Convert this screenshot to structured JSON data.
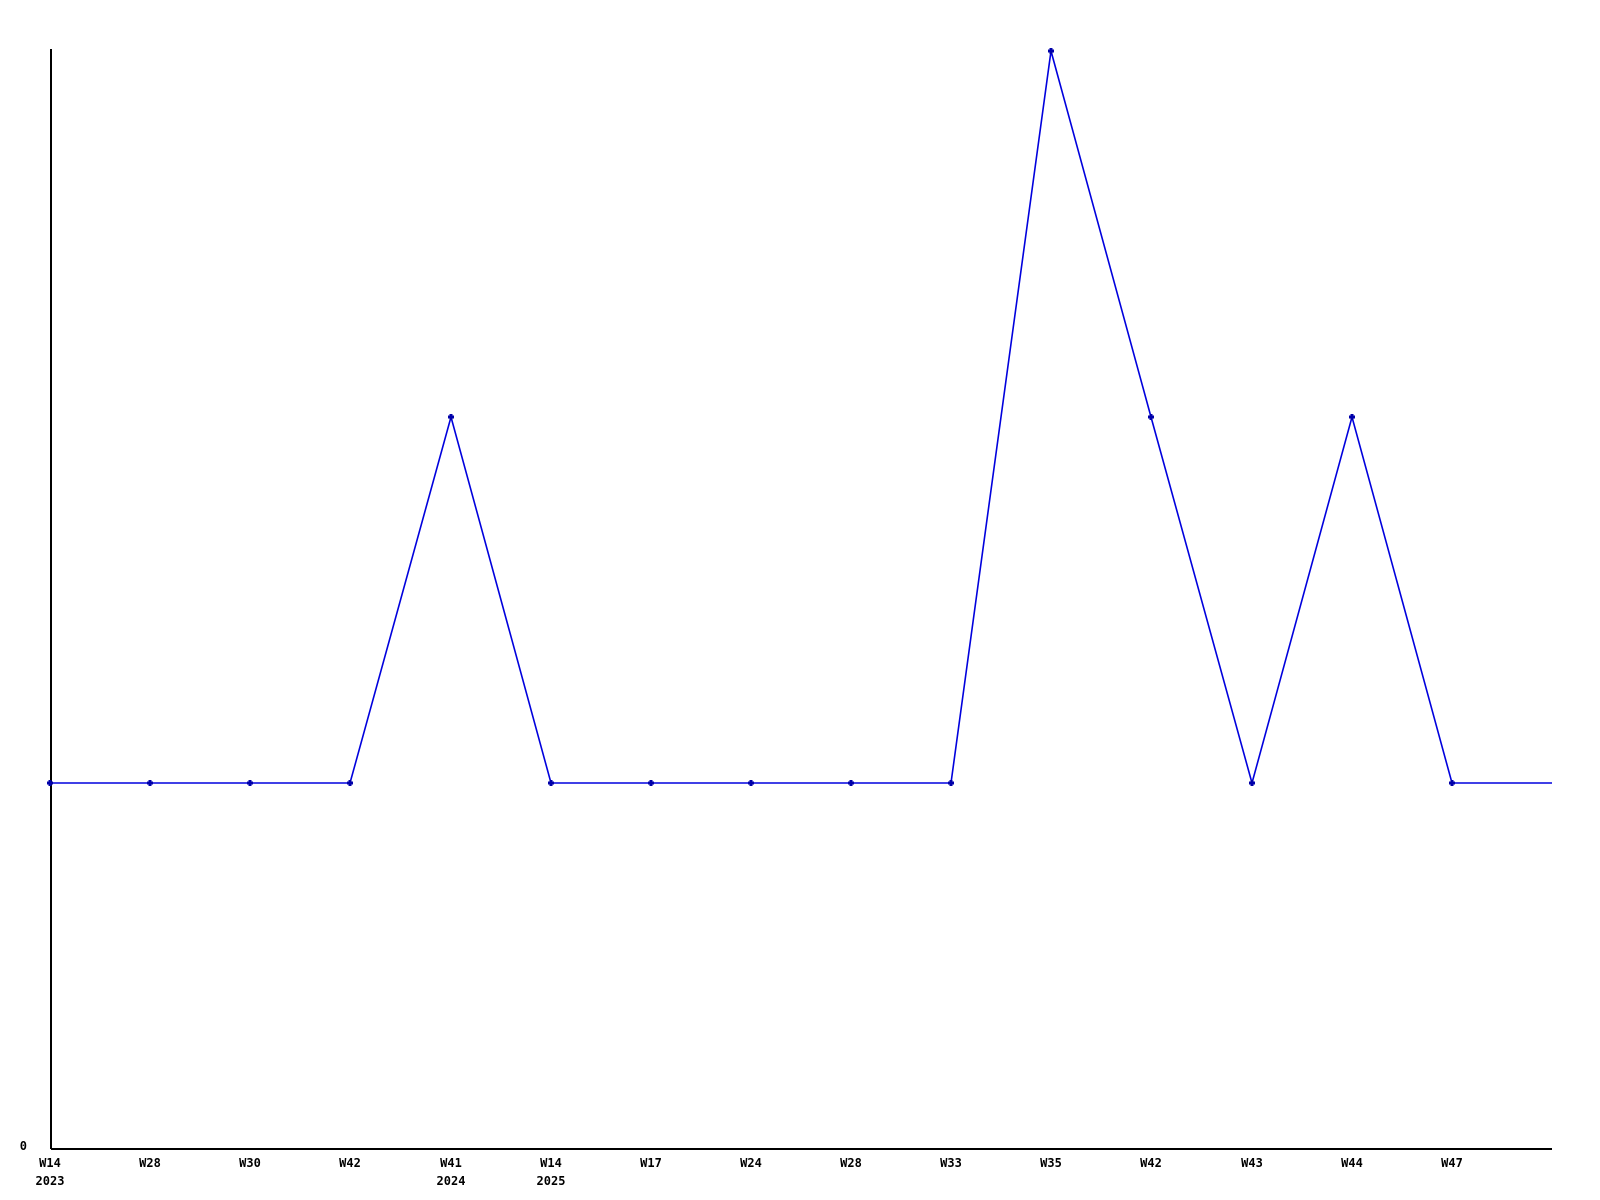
{
  "chart_data": {
    "type": "line",
    "title": "",
    "xlabel": "",
    "ylabel": "",
    "categories": [
      "W14 2023",
      "W28",
      "W30",
      "W42",
      "W41 2024",
      "W14 2025",
      "W17",
      "W24",
      "W28",
      "W33",
      "W35",
      "W42",
      "W43",
      "W44",
      "W47",
      ""
    ],
    "values": [
      1,
      1,
      1,
      1,
      2,
      1,
      1,
      1,
      1,
      1,
      3,
      2,
      1,
      2,
      1,
      1
    ],
    "tick_labels": [
      [
        "W14",
        "2023"
      ],
      [
        "W28"
      ],
      [
        "W30"
      ],
      [
        "W42"
      ],
      [
        "W41",
        "2024"
      ],
      [
        "W14",
        "2025"
      ],
      [
        "W17"
      ],
      [
        "W24"
      ],
      [
        "W28"
      ],
      [
        "W33"
      ],
      [
        "W35"
      ],
      [
        "W42"
      ],
      [
        "W43"
      ],
      [
        "W44"
      ],
      [
        "W47"
      ],
      []
    ],
    "markers_shown": [
      true,
      true,
      true,
      true,
      true,
      true,
      true,
      true,
      true,
      true,
      true,
      true,
      true,
      true,
      true,
      false
    ],
    "y_tick_labels": [
      "0"
    ],
    "ylim": [
      0,
      3
    ],
    "grid": false,
    "legend": null,
    "line_color": "#0000dd",
    "marker_color": "#0000aa",
    "axis_color": "#000000",
    "background_color": "#ffffff"
  }
}
